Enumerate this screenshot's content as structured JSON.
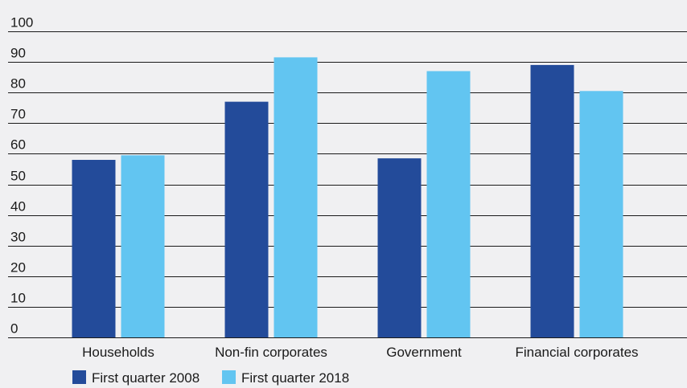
{
  "chart_data": {
    "type": "bar",
    "title": "",
    "xlabel": "",
    "ylabel": "",
    "categories": [
      "Households",
      "Non-fin corporates",
      "Government",
      "Financial corporates"
    ],
    "series": [
      {
        "name": "First quarter 2008",
        "color": "#234b9a",
        "values": [
          58,
          77,
          58.5,
          89
        ]
      },
      {
        "name": "First quarter 2018",
        "color": "#62c5f1",
        "values": [
          59.5,
          91.5,
          87,
          80.5
        ]
      }
    ],
    "ylim": [
      0,
      100
    ],
    "yticks": [
      0,
      10,
      20,
      30,
      40,
      50,
      60,
      70,
      80,
      90,
      100
    ],
    "grid": true,
    "legend_position": "bottom-left",
    "background_color": "#f0f0f2",
    "grid_color": "#1a1a1a"
  }
}
